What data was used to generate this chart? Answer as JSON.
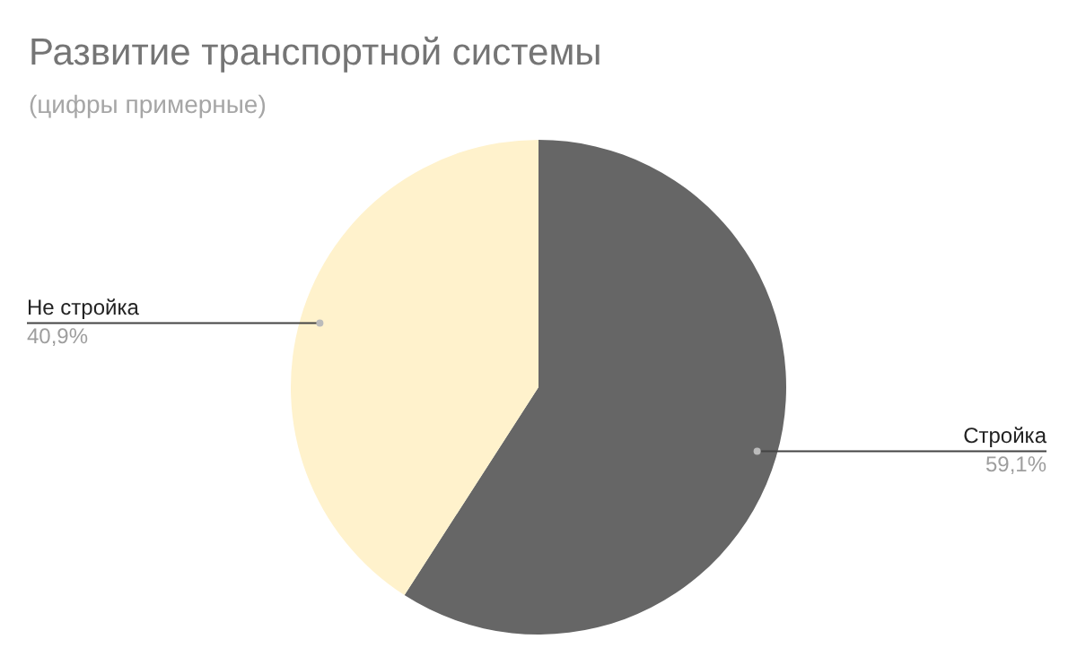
{
  "chart_data": {
    "type": "pie",
    "title": "Развитие транспортной системы",
    "subtitle": "(цифры примерные)",
    "categories": [
      "Стройка",
      "Не стройка"
    ],
    "values": [
      59.1,
      40.9
    ],
    "value_labels": [
      "59,1%",
      "40,9%"
    ],
    "colors": [
      "#666666",
      "#fff2cc"
    ],
    "legend": false
  }
}
